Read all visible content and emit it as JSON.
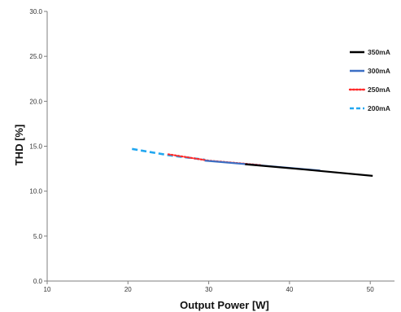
{
  "chart_data": {
    "type": "line",
    "title": "",
    "xlabel": "Output Power [W]",
    "ylabel": "THD [%]",
    "xlim": [
      10,
      53
    ],
    "ylim": [
      0,
      30
    ],
    "xticks": [
      10,
      20,
      30,
      40,
      50
    ],
    "yticks": [
      0,
      5,
      10,
      15,
      20,
      25,
      30
    ],
    "xtick_labels": [
      "10",
      "20",
      "30",
      "40",
      "50"
    ],
    "ytick_labels": [
      "0.0",
      "5.0",
      "10.0",
      "15.0",
      "20.0",
      "25.0",
      "30.0"
    ],
    "grid": false,
    "legend_position": "right",
    "series": [
      {
        "name": "350mA",
        "color": "#000000",
        "dash": "solid",
        "x": [
          34.5,
          42,
          50.3
        ],
        "y": [
          13.0,
          12.4,
          11.7
        ]
      },
      {
        "name": "300mA",
        "color": "#3b6fc4",
        "dash": "solid",
        "x": [
          29.5,
          36,
          43.8
        ],
        "y": [
          13.4,
          12.9,
          12.3
        ]
      },
      {
        "name": "250mA",
        "color": "#ff2a2a",
        "dash": "dotted",
        "x": [
          25,
          30,
          36.5
        ],
        "y": [
          14.1,
          13.4,
          12.9
        ]
      },
      {
        "name": "200mA",
        "color": "#22a7f0",
        "dash": "dashed",
        "x": [
          20.5,
          25,
          29.5
        ],
        "y": [
          14.7,
          14.0,
          13.5
        ]
      }
    ]
  }
}
